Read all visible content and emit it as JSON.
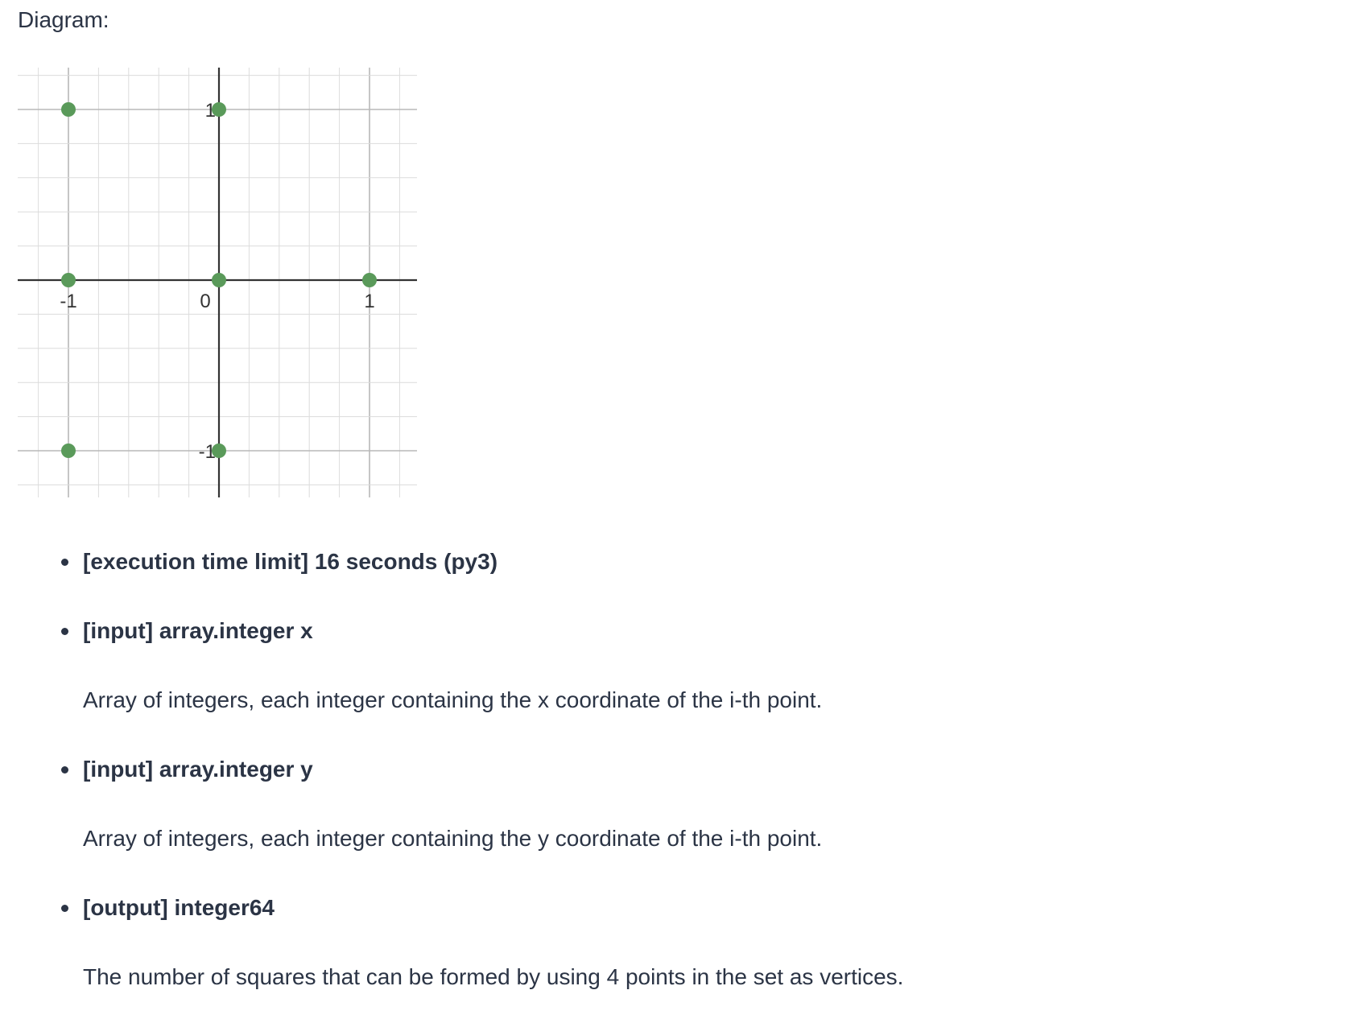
{
  "header": {
    "label": "Diagram:"
  },
  "diagram": {
    "colors": {
      "point": "#5a9a5a",
      "axis": "#333333",
      "grid": "#dcdcdc",
      "grid_major": "#b8b8b8",
      "tick_text": "#333333"
    },
    "x_ticks": [
      {
        "value": -1,
        "label": "-1"
      },
      {
        "value": 0,
        "label": "0"
      },
      {
        "value": 1,
        "label": "1"
      }
    ],
    "y_ticks": [
      {
        "value": 1,
        "label": "1"
      },
      {
        "value": -1,
        "label": "-1"
      }
    ],
    "points": [
      {
        "x": -1,
        "y": 1
      },
      {
        "x": 0,
        "y": 1
      },
      {
        "x": -1,
        "y": 0
      },
      {
        "x": 0,
        "y": 0
      },
      {
        "x": 1,
        "y": 0
      },
      {
        "x": -1,
        "y": -1
      },
      {
        "x": 0,
        "y": -1
      }
    ]
  },
  "spec": {
    "items": [
      {
        "title": "[execution time limit] 16 seconds (py3)",
        "description": ""
      },
      {
        "title": "[input] array.integer x",
        "description": "Array of integers, each integer containing the x coordinate of the i-th point."
      },
      {
        "title": "[input] array.integer y",
        "description": "Array of integers, each integer containing the y coordinate of the i-th point."
      },
      {
        "title": "[output] integer64",
        "description": "The number of squares that can be formed by using 4 points in the set as vertices."
      }
    ]
  }
}
